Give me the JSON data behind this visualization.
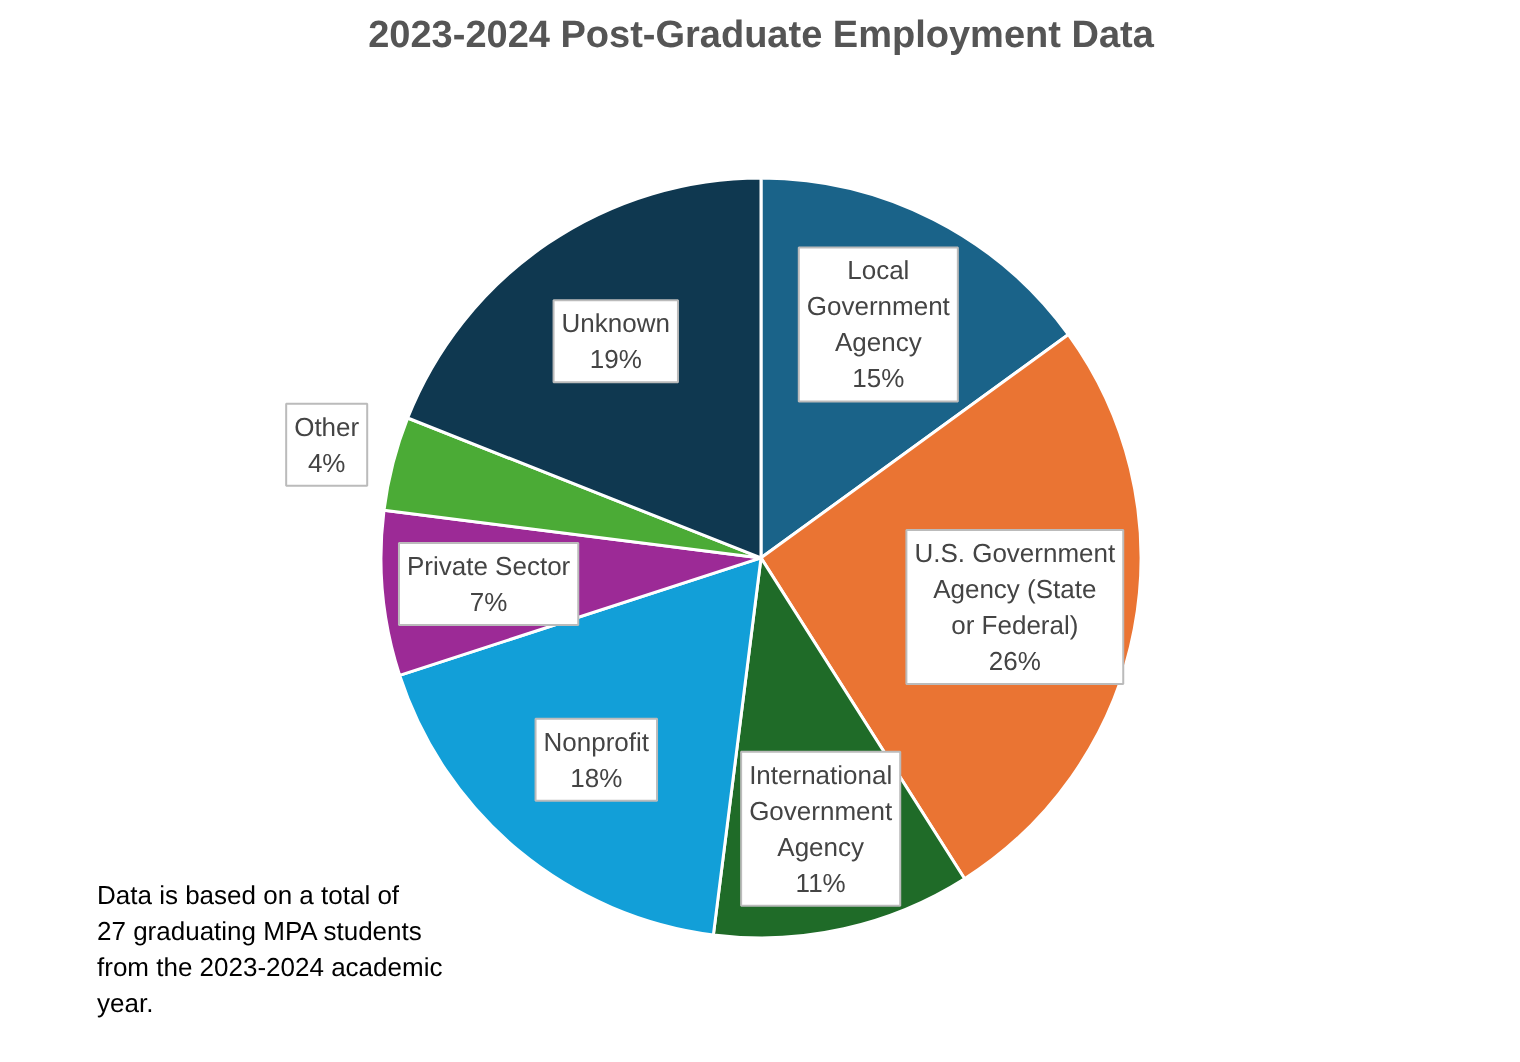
{
  "chart_data": {
    "type": "pie",
    "title": "2023-2024 Post-Graduate Employment Data",
    "categories": [
      "Local Government Agency",
      "U.S. Government Agency (State or Federal)",
      "International Government Agency",
      "Nonprofit",
      "Private Sector",
      "Other",
      "Unknown"
    ],
    "values": [
      15,
      26,
      11,
      18,
      7,
      4,
      19
    ],
    "colors": [
      "#1a6389",
      "#ea7433",
      "#1f6b28",
      "#129fd8",
      "#9c2a96",
      "#4bab36",
      "#0f3850"
    ],
    "value_labels": [
      "15%",
      "26%",
      "11%",
      "18%",
      "7%",
      "4%",
      "19%"
    ],
    "annotations": [
      "Data is based on a total of 27 graduating MPA students from the 2023-2024 academic year."
    ]
  }
}
